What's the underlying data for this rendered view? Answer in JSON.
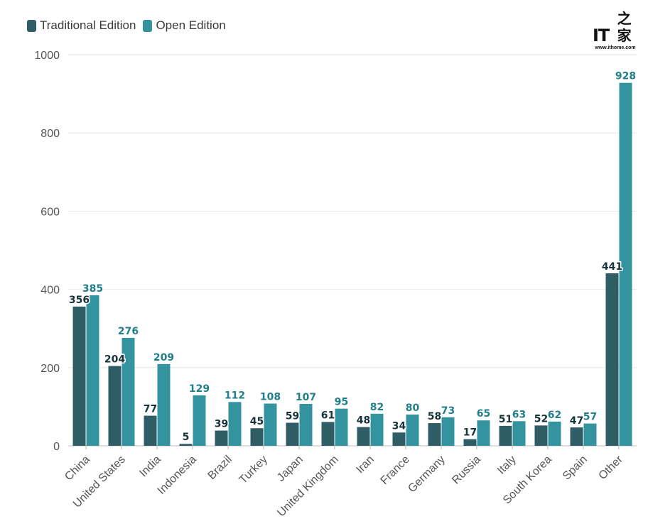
{
  "legend": {
    "series1": "Traditional Edition",
    "series2": "Open Edition"
  },
  "watermark": {
    "logo_text": "IT之家",
    "url": "www.ithome.com"
  },
  "colors": {
    "traditional": "#2f5d66",
    "open": "#33939f",
    "traditional_label": "#17333a",
    "open_label": "#1f7f8a",
    "grid": "#e6e6e6",
    "axis": "#bdbdbd"
  },
  "chart_data": {
    "type": "bar",
    "title": "",
    "xlabel": "",
    "ylabel": "",
    "ylim": [
      0,
      1000
    ],
    "yticks": [
      0,
      200,
      400,
      600,
      800,
      1000
    ],
    "grid": true,
    "legend_position": "top-left",
    "categories": [
      "China",
      "United States",
      "India",
      "Indonesia",
      "Brazil",
      "Turkey",
      "Japan",
      "United Kingdom",
      "Iran",
      "France",
      "Germany",
      "Russia",
      "Italy",
      "South Korea",
      "Spain",
      "Other"
    ],
    "series": [
      {
        "name": "Traditional Edition",
        "values": [
          356,
          204,
          77,
          5,
          39,
          45,
          59,
          61,
          48,
          34,
          58,
          17,
          51,
          52,
          47,
          441
        ]
      },
      {
        "name": "Open Edition",
        "values": [
          385,
          276,
          209,
          129,
          112,
          108,
          107,
          95,
          82,
          80,
          73,
          65,
          63,
          62,
          57,
          928
        ]
      }
    ]
  }
}
